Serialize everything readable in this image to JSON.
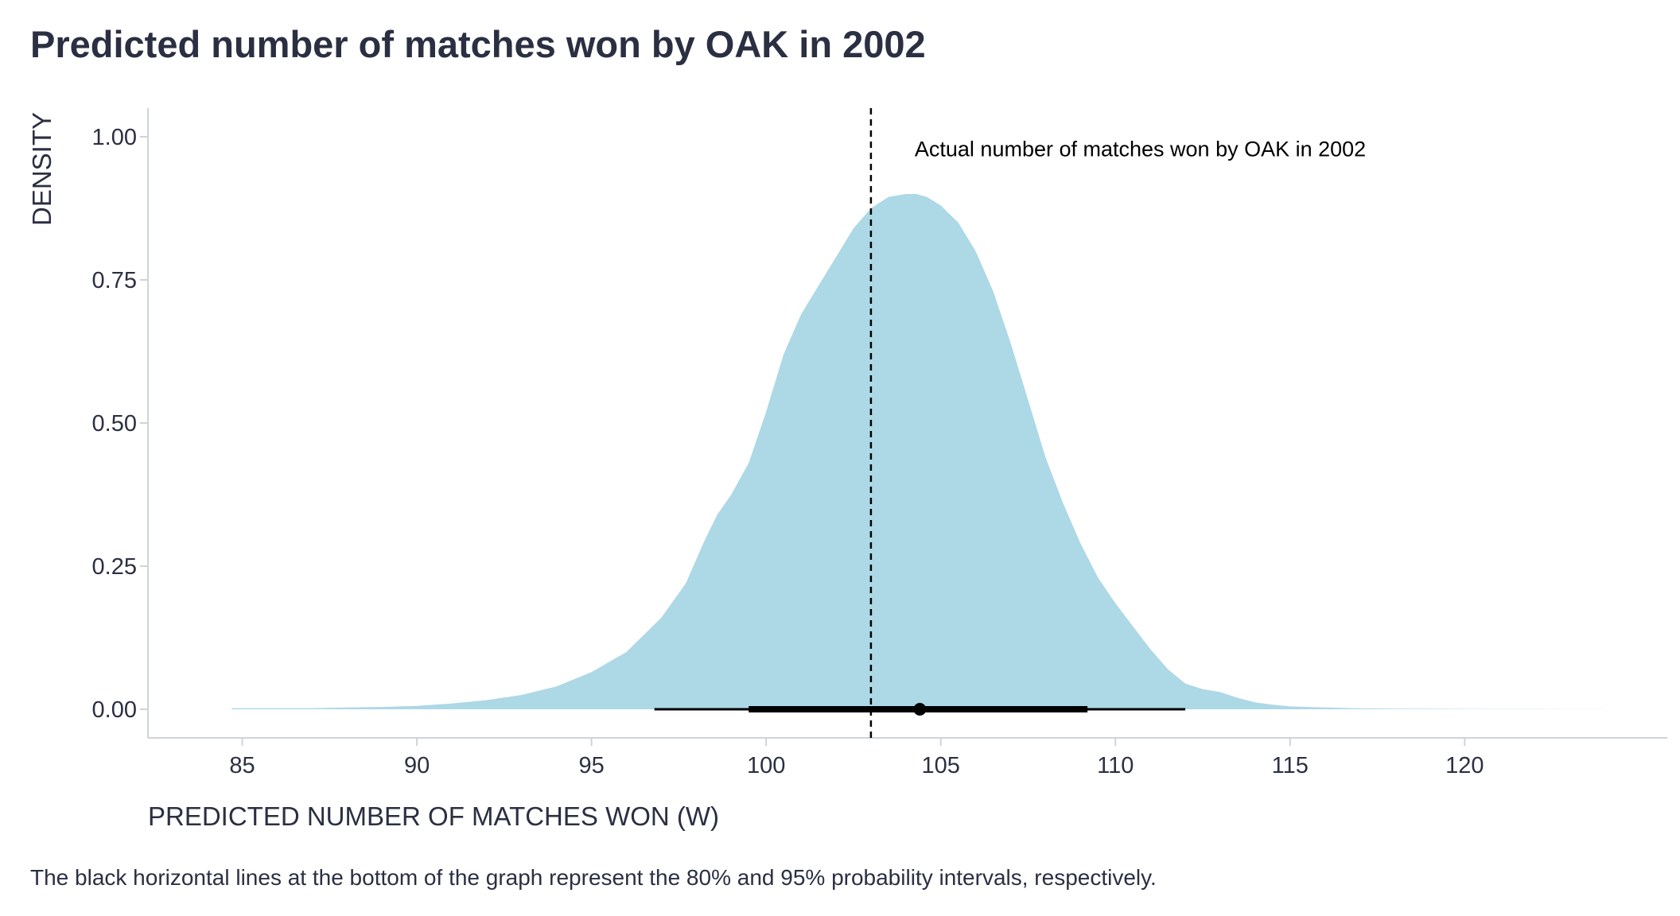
{
  "title": "Predicted number of matches won by OAK in 2002",
  "caption": "The black horizontal lines at the bottom of the graph represent the 80% and 95% probability intervals, respectively.",
  "colors": {
    "density_fill": "#add8e6",
    "text": "#2b2f42",
    "axis_line": "#d0d3da",
    "reference_line": "#000000",
    "interval": "#000000"
  },
  "chart_data": {
    "type": "area",
    "title": "Predicted number of matches won by OAK in 2002",
    "xlabel": "PREDICTED NUMBER OF MATCHES WON (W)",
    "ylabel": "DENSITY",
    "xlim": [
      82.3,
      125.8
    ],
    "ylim": [
      -0.05,
      1.05
    ],
    "x_ticks": [
      85,
      90,
      95,
      100,
      105,
      110,
      115,
      120
    ],
    "x_tick_labels": [
      "85",
      "90",
      "95",
      "100",
      "105",
      "110",
      "115",
      "120"
    ],
    "y_ticks": [
      0,
      0.25,
      0.5,
      0.75,
      1.0
    ],
    "y_tick_labels": [
      "0.00",
      "0.25",
      "0.50",
      "0.75",
      "1.00"
    ],
    "grid": false,
    "density": {
      "x": [
        84.7,
        87.0,
        88.0,
        89.0,
        90.0,
        91.0,
        92.0,
        93.0,
        94.0,
        95.0,
        96.0,
        97.0,
        97.7,
        98.2,
        98.6,
        99.0,
        99.5,
        100.0,
        100.5,
        101.0,
        101.5,
        102.0,
        102.5,
        103.0,
        103.5,
        104.0,
        104.3,
        104.6,
        105.0,
        105.5,
        106.0,
        106.5,
        107.0,
        107.5,
        108.0,
        108.5,
        109.0,
        109.5,
        110.0,
        110.5,
        111.0,
        111.5,
        112.0,
        112.5,
        113.0,
        113.5,
        114.0,
        114.5,
        115.0,
        116.0,
        117.0,
        118.0,
        119.0,
        120.0,
        121.0,
        122.0,
        123.0,
        124.0
      ],
      "y": [
        0.002,
        0.002,
        0.003,
        0.004,
        0.006,
        0.01,
        0.016,
        0.025,
        0.04,
        0.065,
        0.1,
        0.16,
        0.22,
        0.29,
        0.34,
        0.375,
        0.43,
        0.52,
        0.62,
        0.69,
        0.74,
        0.79,
        0.84,
        0.875,
        0.895,
        0.9,
        0.9,
        0.895,
        0.88,
        0.85,
        0.8,
        0.73,
        0.64,
        0.54,
        0.44,
        0.36,
        0.29,
        0.23,
        0.185,
        0.145,
        0.105,
        0.07,
        0.045,
        0.035,
        0.03,
        0.02,
        0.012,
        0.008,
        0.005,
        0.003,
        0.0015,
        0.001,
        0.0008,
        0.0006,
        0.0004,
        0.0003,
        0.0002,
        0.0001
      ]
    },
    "reference_line": {
      "x": 103,
      "label": "Actual number of matches won by OAK in 2002"
    },
    "point_estimate": 104.4,
    "interval_80": [
      99.5,
      109.2
    ],
    "interval_95": [
      96.8,
      112.0
    ]
  }
}
